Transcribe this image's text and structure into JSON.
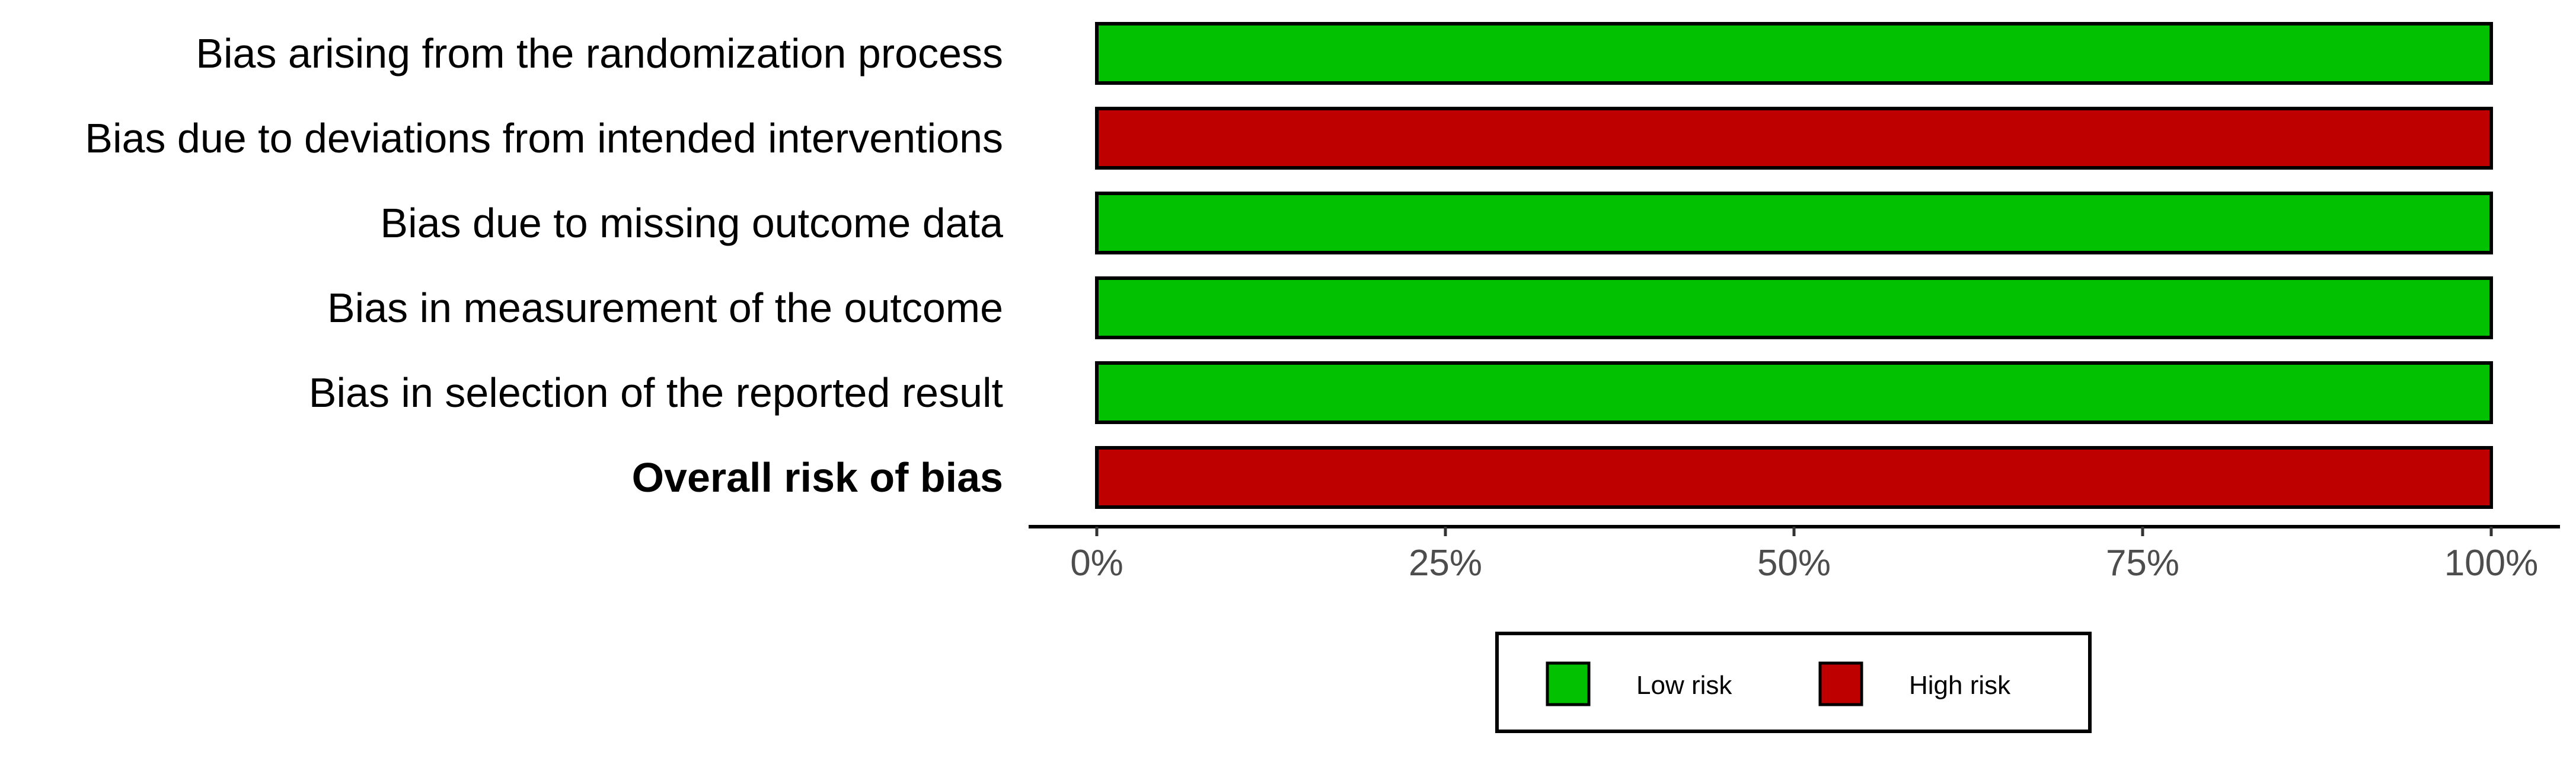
{
  "chart_data": {
    "type": "bar",
    "orientation": "horizontal",
    "stacked": true,
    "title": "",
    "xlabel": "",
    "ylabel": "",
    "xlim": [
      0,
      100
    ],
    "x_ticks": [
      0,
      25,
      50,
      75,
      100
    ],
    "x_tick_labels": [
      "0%",
      "25%",
      "50%",
      "75%",
      "100%"
    ],
    "grid": false,
    "legend_position": "bottom",
    "categories": [
      "Bias arising from the randomization process",
      "Bias due to deviations from intended interventions",
      "Bias due to missing outcome data",
      "Bias in measurement of the outcome",
      "Bias in selection of the reported result",
      "Overall risk of bias"
    ],
    "bold_categories": [
      "Overall risk of bias"
    ],
    "series": [
      {
        "name": "Low risk",
        "color": "#02C100",
        "values": [
          100,
          0,
          100,
          100,
          100,
          0
        ]
      },
      {
        "name": "High risk",
        "color": "#BF0000",
        "values": [
          0,
          100,
          0,
          0,
          0,
          100
        ]
      }
    ]
  }
}
